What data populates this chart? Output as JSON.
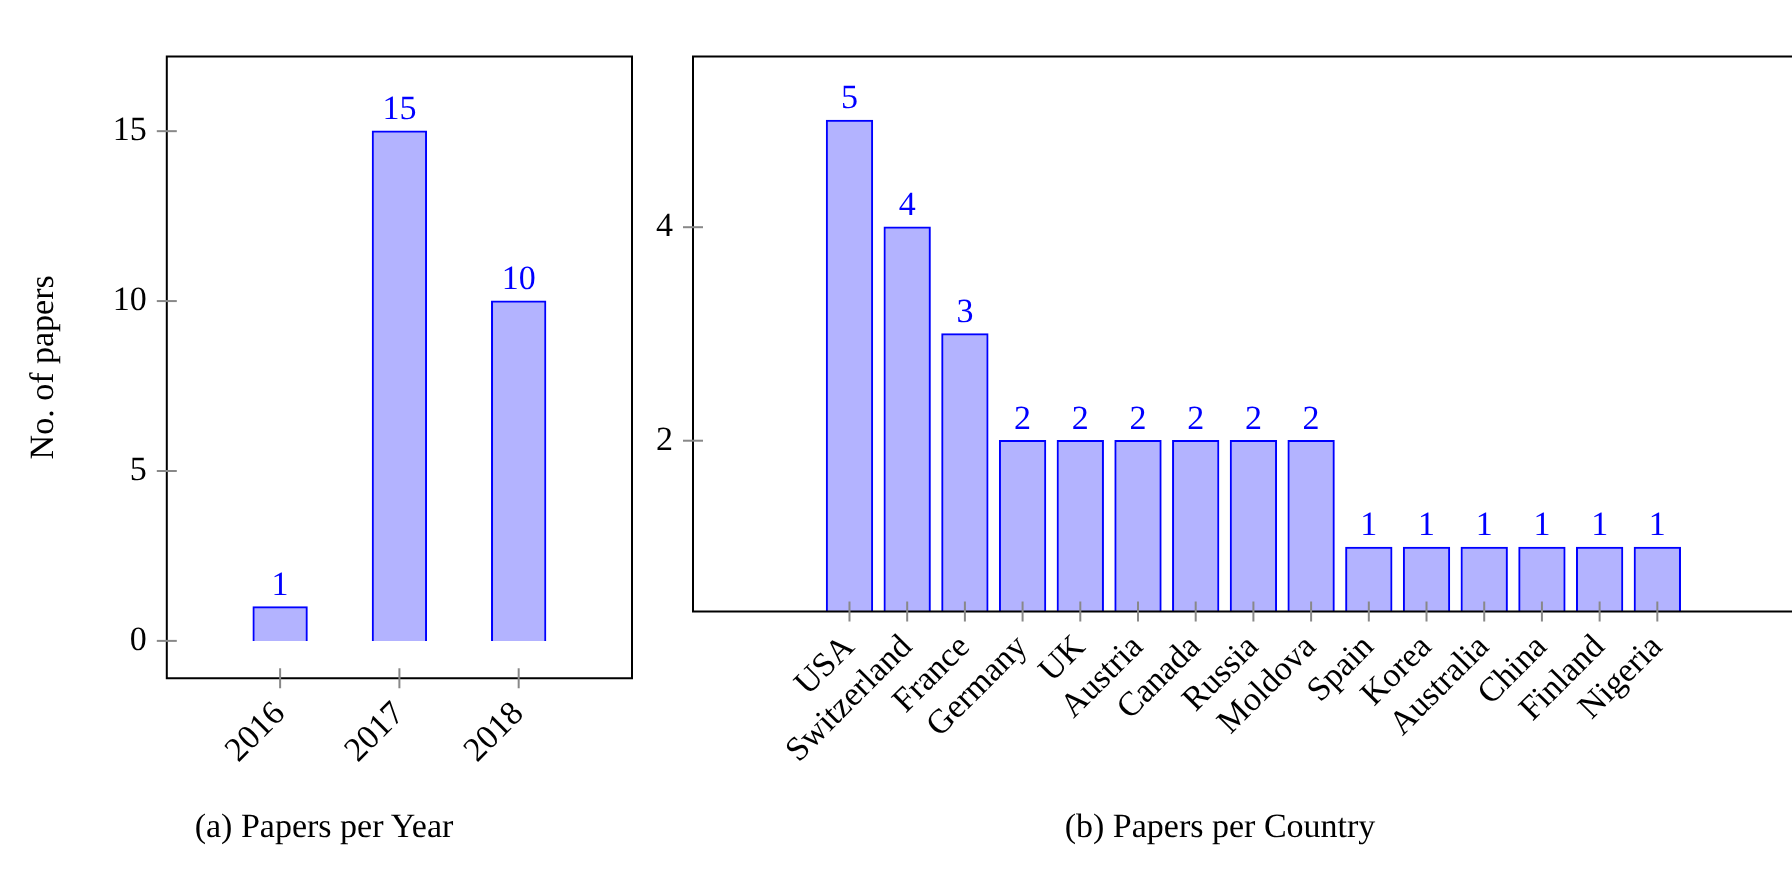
{
  "chart_data": [
    {
      "type": "bar",
      "title": "(a) Papers per Year",
      "ylabel": "No. of papers",
      "categories": [
        "2016",
        "2017",
        "2018"
      ],
      "values": [
        1,
        15,
        10
      ],
      "color": "#b3b3ff",
      "ylim": [
        -1.1,
        17.2
      ],
      "yticks": [
        0,
        5,
        10,
        15
      ],
      "data_labels": true,
      "grid": false
    },
    {
      "type": "bar",
      "title": "(b) Papers per Country",
      "categories": [
        "USA",
        "Switzerland",
        "France",
        "Germany",
        "UK",
        "Austria",
        "Canada",
        "Russia",
        "Moldova",
        "Spain",
        "Korea",
        "Australia",
        "China",
        "Finland",
        "Nigeria"
      ],
      "values": [
        5,
        4,
        3,
        2,
        2,
        2,
        2,
        2,
        2,
        1,
        1,
        1,
        1,
        1,
        1
      ],
      "color": "#b3b3ff",
      "ylim": [
        0.4,
        5.6
      ],
      "yticks": [
        2,
        4
      ],
      "data_labels": true,
      "grid": false
    }
  ]
}
